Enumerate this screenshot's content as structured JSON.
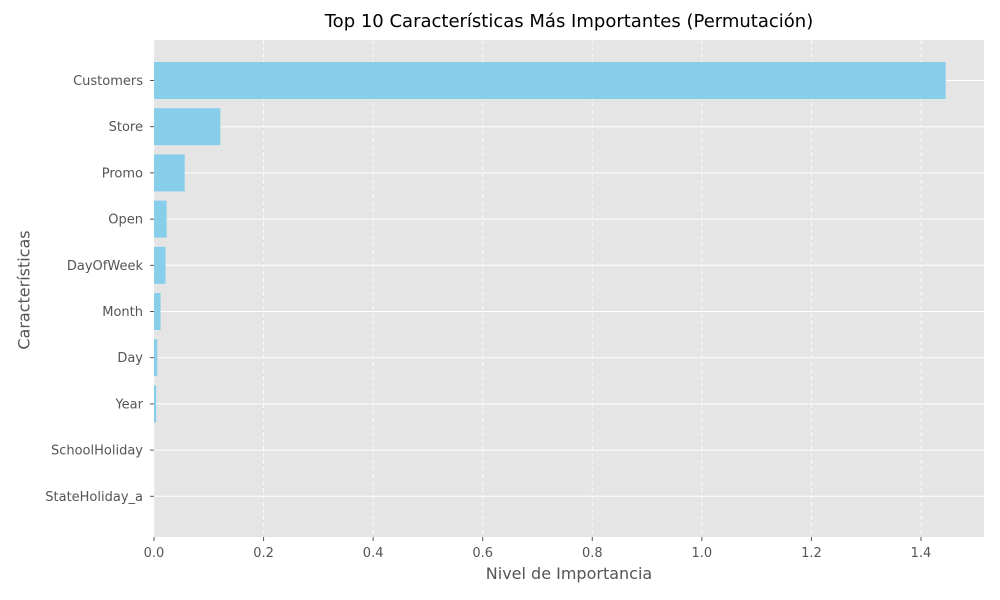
{
  "chart_data": {
    "type": "bar",
    "orientation": "horizontal",
    "title": "Top 10 Características Más Importantes (Permutación)",
    "xlabel": "Nivel de Importancia",
    "ylabel": "Características",
    "categories": [
      "Customers",
      "Store",
      "Promo",
      "Open",
      "DayOfWeek",
      "Month",
      "Day",
      "Year",
      "SchoolHoliday",
      "StateHoliday_a"
    ],
    "values": [
      1.445,
      0.121,
      0.056,
      0.023,
      0.021,
      0.012,
      0.006,
      0.004,
      0.0,
      0.0
    ],
    "xlim": [
      0,
      1.515
    ],
    "xticks": [
      0.0,
      0.2,
      0.4,
      0.6,
      0.8,
      1.0,
      1.2,
      1.4
    ],
    "xtick_labels": [
      "0.0",
      "0.2",
      "0.4",
      "0.6",
      "0.8",
      "1.0",
      "1.2",
      "1.4"
    ],
    "grid": true,
    "bar_color": "#87ceeb",
    "background_color": "#e5e5e5"
  }
}
